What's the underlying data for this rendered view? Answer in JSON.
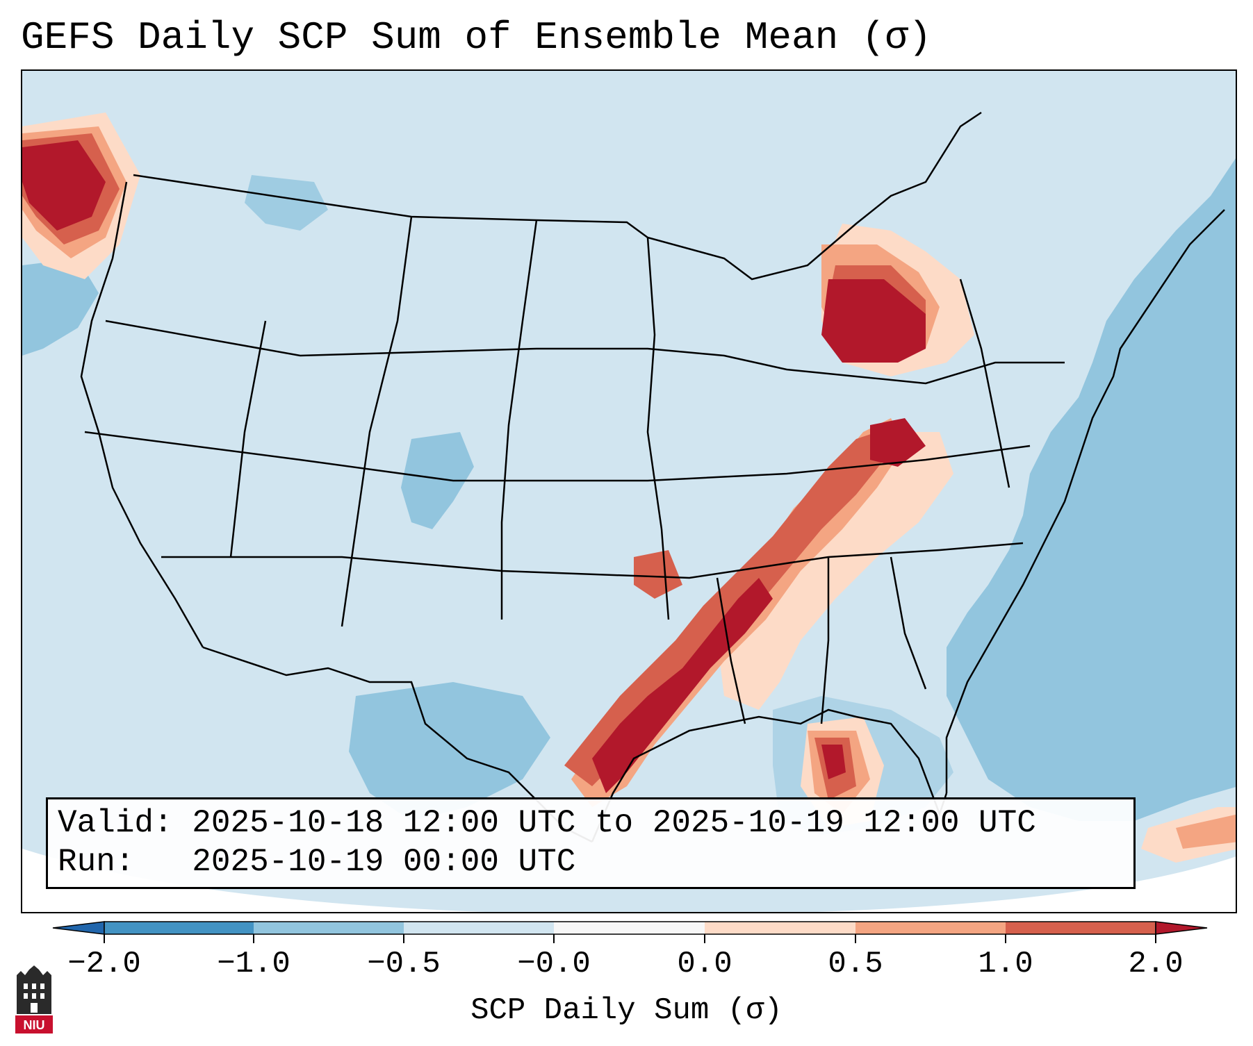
{
  "title": "GEFS Daily SCP Sum of Ensemble Mean (σ)",
  "info": {
    "valid_label": "Valid:",
    "valid_value": "2025-10-18 12:00 UTC to 2025-10-19 12:00 UTC",
    "run_label": "Run:",
    "run_value": "2025-10-19 00:00 UTC"
  },
  "colorbar": {
    "label": "SCP Daily Sum (σ)",
    "ticks": [
      "−2.0",
      "−1.0",
      "−0.5",
      "−0.0",
      "0.0",
      "0.5",
      "1.0",
      "2.0"
    ],
    "colors": [
      "#4393c3",
      "#92c5de",
      "#d1e5f0",
      "#f7f7f7",
      "#fddbc7",
      "#f4a582",
      "#d6604d",
      "#b2182b"
    ],
    "extend_low_color": "#2166ac",
    "extend_high_color": "#b2182b"
  },
  "logo": {
    "text": "NIU",
    "color": "#c8102e"
  },
  "map": {
    "land_color": "#d1e5f0",
    "ocean_color": "#92c5de",
    "offgrid_color": "#ffffff"
  }
}
